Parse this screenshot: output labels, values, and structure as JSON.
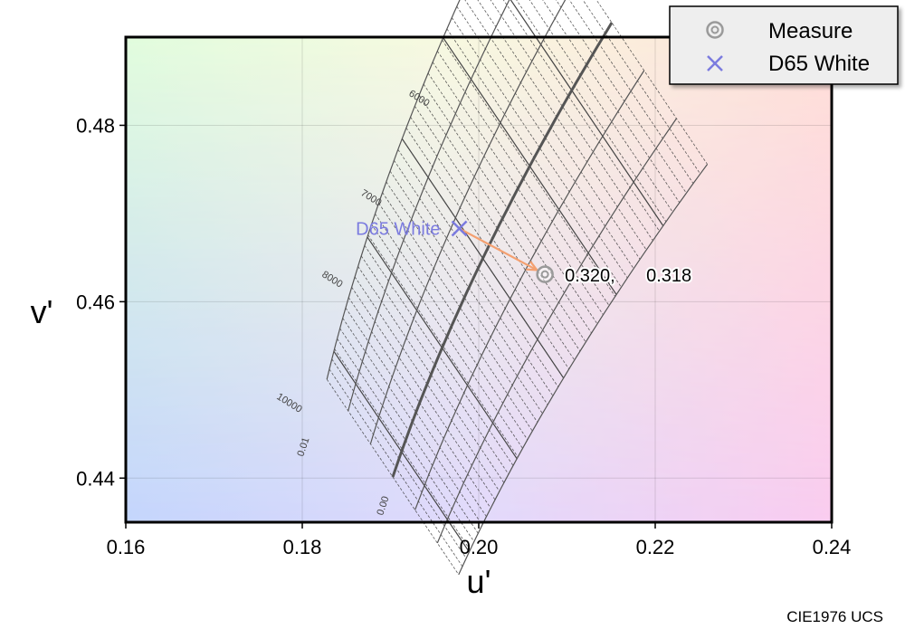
{
  "chart_data": {
    "type": "scatter",
    "diagram": "CIE1976 UCS",
    "xlabel": "u'",
    "ylabel": "v'",
    "xlim": [
      0.16,
      0.24
    ],
    "ylim": [
      0.435,
      0.49
    ],
    "xticks": [
      "0.16",
      "0.18",
      "0.20",
      "0.22",
      "0.24"
    ],
    "yticks": [
      "0.44",
      "0.46",
      "0.48"
    ],
    "grid": true,
    "legend": {
      "position": "top-right",
      "entries": [
        {
          "label": "Measure",
          "marker": "double-circle",
          "color": "#9a9a9a"
        },
        {
          "label": "D65 White",
          "marker": "cross",
          "color": "#7b7bdf"
        }
      ]
    },
    "isotherm_labels": [
      "6000",
      "7000",
      "8000",
      "10000"
    ],
    "duv_labels": [
      "0.01",
      "0.00"
    ],
    "points": [
      {
        "name": "D65 White",
        "u": 0.1978,
        "v": 0.4683,
        "label": "D65 White",
        "color": "#7b7bdf"
      },
      {
        "name": "Measure",
        "u": 0.2075,
        "v": 0.4631,
        "label_x": "0.320,",
        "label_y": "0.318",
        "color": "#9a9a9a"
      }
    ],
    "shift_arrow": {
      "from": "D65 White",
      "to": "Measure",
      "color": "#f4a070"
    }
  }
}
